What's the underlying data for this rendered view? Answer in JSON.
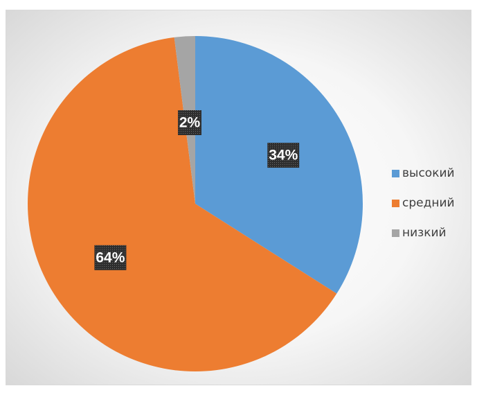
{
  "chart_data": {
    "type": "pie",
    "categories": [
      "высокий",
      "средний",
      "низкий"
    ],
    "values": [
      34,
      64,
      2
    ],
    "labels": [
      "34%",
      "64%",
      "2%"
    ],
    "colors": [
      "#5b9bd5",
      "#ed7d31",
      "#a5a5a5"
    ],
    "legend_position": "right",
    "start_angle_deg": 0,
    "direction": "clockwise"
  }
}
